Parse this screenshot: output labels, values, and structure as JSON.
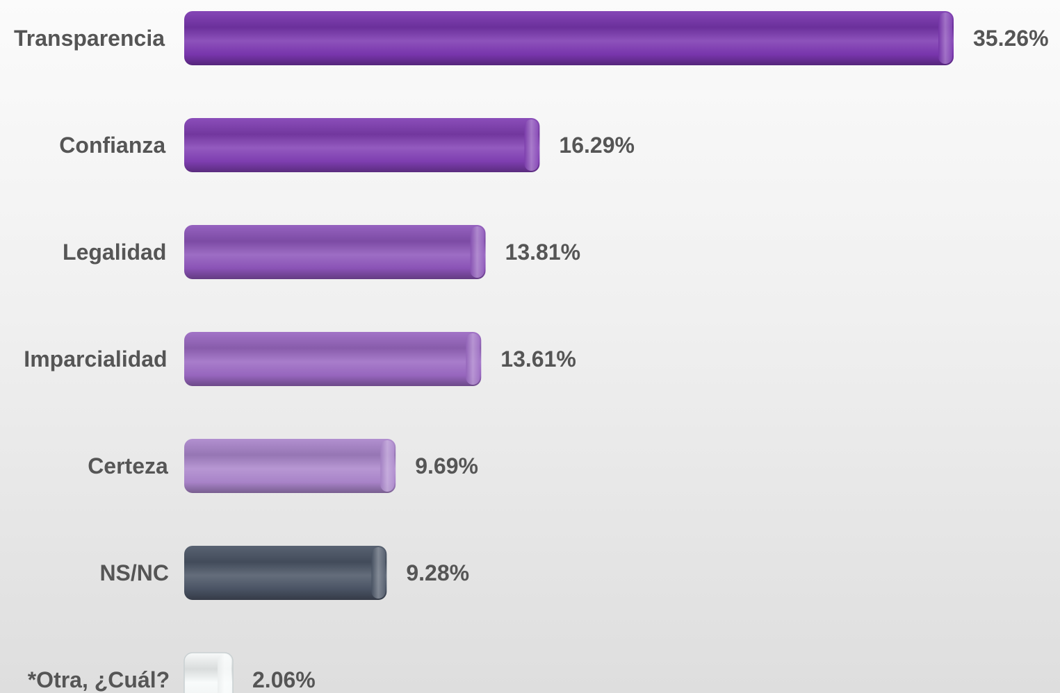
{
  "chart_data": {
    "type": "bar",
    "orientation": "horizontal",
    "categories": [
      "Transparencia",
      "Confianza",
      "Legalidad",
      "Imparcialidad",
      "Certeza",
      "NS/NC",
      "*Otra, ¿Cuál?"
    ],
    "values": [
      35.26,
      16.29,
      13.81,
      13.61,
      9.69,
      9.28,
      2.06
    ],
    "value_labels": [
      "35.26%",
      "16.29%",
      "13.81%",
      "13.61%",
      "9.69%",
      "9.28%",
      "2.06%"
    ],
    "value_unit": "%",
    "title": "",
    "xlabel": "",
    "ylabel": "",
    "xlim": [
      0,
      35.26
    ],
    "grid": false,
    "legend": "none",
    "style": "3d-cylinder",
    "colors": [
      "#7a36b0",
      "#813fb4",
      "#8d55ba",
      "#9a68c2",
      "#ab86cc",
      "#4b5566",
      "#f7fafa"
    ]
  }
}
